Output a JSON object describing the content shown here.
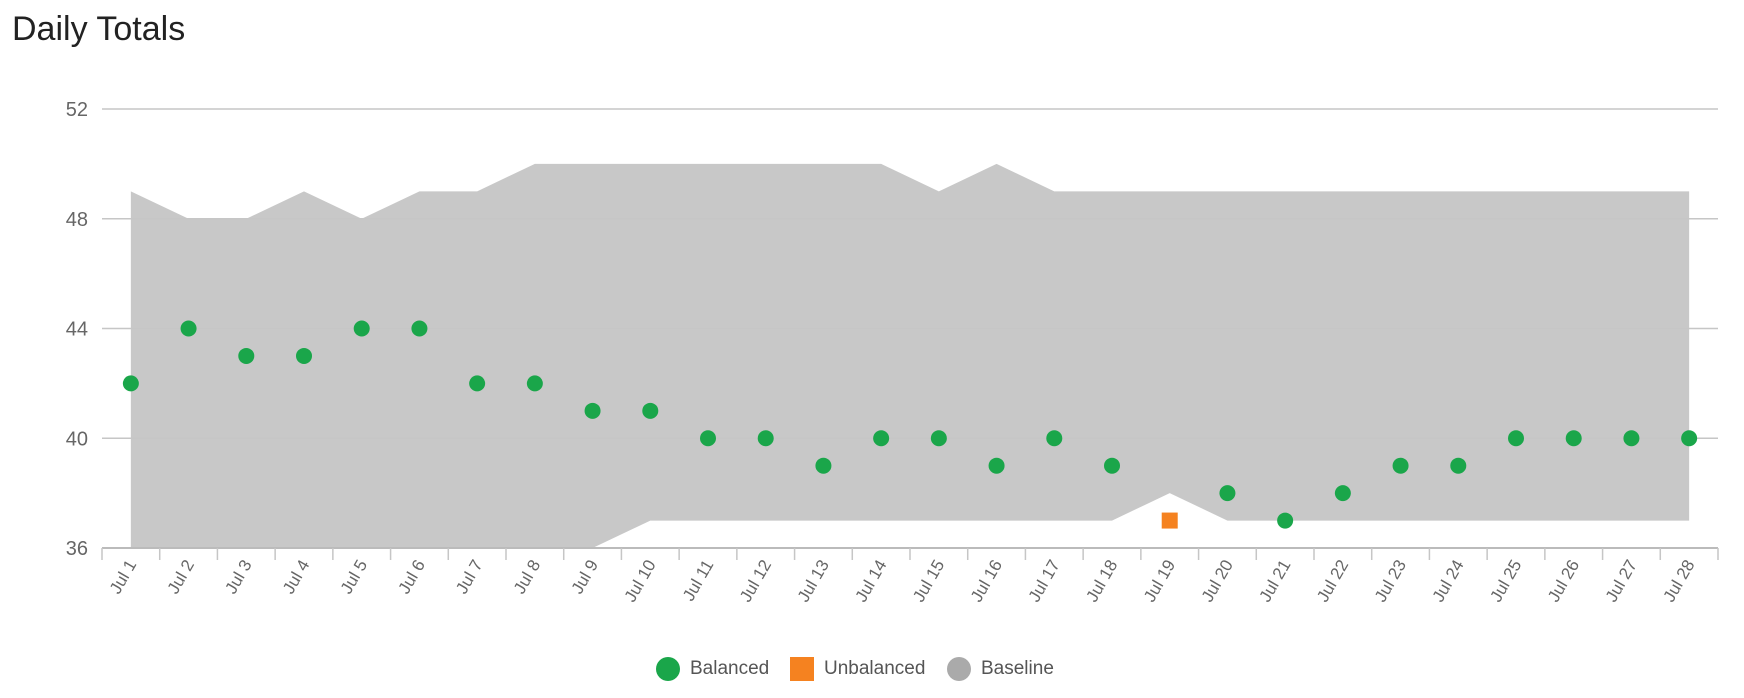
{
  "title": "Daily Totals",
  "legend": {
    "items": [
      {
        "label": "Balanced",
        "color": "#1aa64a",
        "shape": "circle"
      },
      {
        "label": "Unbalanced",
        "color": "#f58220",
        "shape": "square"
      },
      {
        "label": "Baseline",
        "color": "#aaaaaa",
        "shape": "circle"
      }
    ]
  },
  "chart_data": {
    "type": "scatter",
    "title": "Daily Totals",
    "xlabel": "",
    "ylabel": "",
    "ylim": [
      36,
      52
    ],
    "yticks": [
      36,
      40,
      44,
      48,
      52
    ],
    "grid": true,
    "legend_position": "bottom",
    "categories": [
      "Jul 1",
      "Jul 2",
      "Jul 3",
      "Jul 4",
      "Jul 5",
      "Jul 6",
      "Jul 7",
      "Jul 8",
      "Jul 9",
      "Jul 10",
      "Jul 11",
      "Jul 12",
      "Jul 13",
      "Jul 14",
      "Jul 15",
      "Jul 16",
      "Jul 17",
      "Jul 18",
      "Jul 19",
      "Jul 20",
      "Jul 21",
      "Jul 22",
      "Jul 23",
      "Jul 24",
      "Jul 25",
      "Jul 26",
      "Jul 27",
      "Jul 28"
    ],
    "baseline": {
      "name": "Baseline",
      "color": "#c8c8c8",
      "upper": [
        49,
        48,
        48,
        49,
        48,
        49,
        49,
        50,
        50,
        50,
        50,
        50,
        50,
        50,
        49,
        50,
        49,
        49,
        49,
        49,
        49,
        49,
        49,
        49,
        49,
        49,
        49,
        49
      ],
      "lower": [
        36,
        36,
        36,
        36,
        36,
        36,
        36,
        36,
        36,
        37,
        37,
        37,
        37,
        37,
        37,
        37,
        37,
        37,
        38,
        37,
        37,
        37,
        37,
        37,
        37,
        37,
        37,
        37
      ]
    },
    "series": [
      {
        "name": "Balanced",
        "color": "#1aa64a",
        "marker": "circle",
        "values": [
          42,
          44,
          43,
          43,
          44,
          44,
          42,
          42,
          41,
          41,
          40,
          40,
          39,
          40,
          40,
          39,
          40,
          39,
          null,
          38,
          37,
          38,
          39,
          39,
          40,
          40,
          40,
          40
        ]
      },
      {
        "name": "Unbalanced",
        "color": "#f58220",
        "marker": "square",
        "values": [
          null,
          null,
          null,
          null,
          null,
          null,
          null,
          null,
          null,
          null,
          null,
          null,
          null,
          null,
          null,
          null,
          null,
          null,
          37,
          null,
          null,
          null,
          null,
          null,
          null,
          null,
          null,
          null
        ]
      }
    ]
  }
}
